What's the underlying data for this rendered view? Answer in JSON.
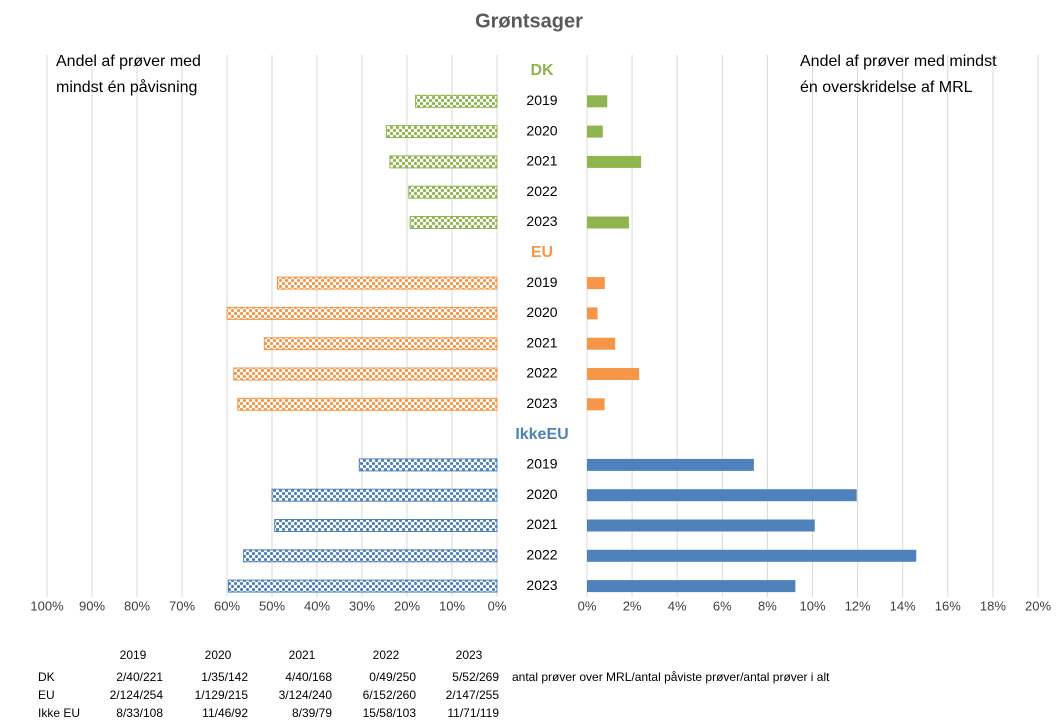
{
  "chart_data": {
    "type": "butterfly",
    "title": "Grøntsager",
    "left_label": [
      "Andel af prøver med",
      "mindst én påvisning"
    ],
    "right_label": [
      "Andel af prøver med mindst",
      "én overskridelse af MRL"
    ],
    "groups": [
      {
        "name": "DK",
        "color": "#8fb54e",
        "categories": [
          "2019",
          "2020",
          "2021",
          "2022",
          "2023"
        ],
        "left_values": [
          18.1,
          24.6,
          23.8,
          19.6,
          19.3
        ],
        "right_values": [
          0.9,
          0.7,
          2.4,
          0,
          1.86
        ]
      },
      {
        "name": "EU",
        "color": "#f79646",
        "categories": [
          "2019",
          "2020",
          "2021",
          "2022",
          "2023"
        ],
        "left_values": [
          48.8,
          60.0,
          51.7,
          58.5,
          57.6
        ],
        "right_values": [
          0.79,
          0.47,
          1.25,
          2.31,
          0.78
        ]
      },
      {
        "name": "IkkeEU",
        "color": "#4f81bd",
        "categories": [
          "2019",
          "2020",
          "2021",
          "2022",
          "2023"
        ],
        "left_values": [
          30.6,
          50.0,
          49.4,
          56.3,
          59.7
        ],
        "right_values": [
          7.4,
          11.96,
          10.1,
          14.6,
          9.24
        ]
      }
    ],
    "xlim_left": [
      100,
      0
    ],
    "xticks_left": [
      {
        "value": 100,
        "label": "100%"
      },
      {
        "value": 90,
        "label": "90%"
      },
      {
        "value": 80,
        "label": "80%"
      },
      {
        "value": 70,
        "label": "70%"
      },
      {
        "value": 60,
        "label": "60%"
      },
      {
        "value": 50,
        "label": "50%"
      },
      {
        "value": 40,
        "label": "40%"
      },
      {
        "value": 30,
        "label": "30%"
      },
      {
        "value": 20,
        "label": "20%"
      },
      {
        "value": 10,
        "label": "10%"
      },
      {
        "value": 0,
        "label": "0%"
      }
    ],
    "xlim_right": [
      0,
      20
    ],
    "xticks_right": [
      {
        "value": 0,
        "label": "0%"
      },
      {
        "value": 2,
        "label": "2%"
      },
      {
        "value": 4,
        "label": "4%"
      },
      {
        "value": 6,
        "label": "6%"
      },
      {
        "value": 8,
        "label": "8%"
      },
      {
        "value": 10,
        "label": "10%"
      },
      {
        "value": 12,
        "label": "12%"
      },
      {
        "value": 14,
        "label": "14%"
      },
      {
        "value": 16,
        "label": "16%"
      },
      {
        "value": 18,
        "label": "18%"
      },
      {
        "value": 20,
        "label": "20%"
      }
    ],
    "grid": true
  },
  "table": {
    "header": [
      "2019",
      "2020",
      "2021",
      "2022",
      "2023"
    ],
    "rows": [
      [
        "DK",
        "2/40/221",
        "1/35/142",
        "4/40/168",
        "0/49/250",
        "5/52/269"
      ],
      [
        "EU",
        "2/124/254",
        "1/129/215",
        "3/124/240",
        "6/152/260",
        "2/147/255"
      ],
      [
        "Ikke EU",
        "8/33/108",
        "11/46/92",
        "8/39/79",
        "15/58/103",
        "11/71/119"
      ]
    ],
    "note": "antal prøver over MRL/antal påviste prøver/antal prøver i alt"
  }
}
